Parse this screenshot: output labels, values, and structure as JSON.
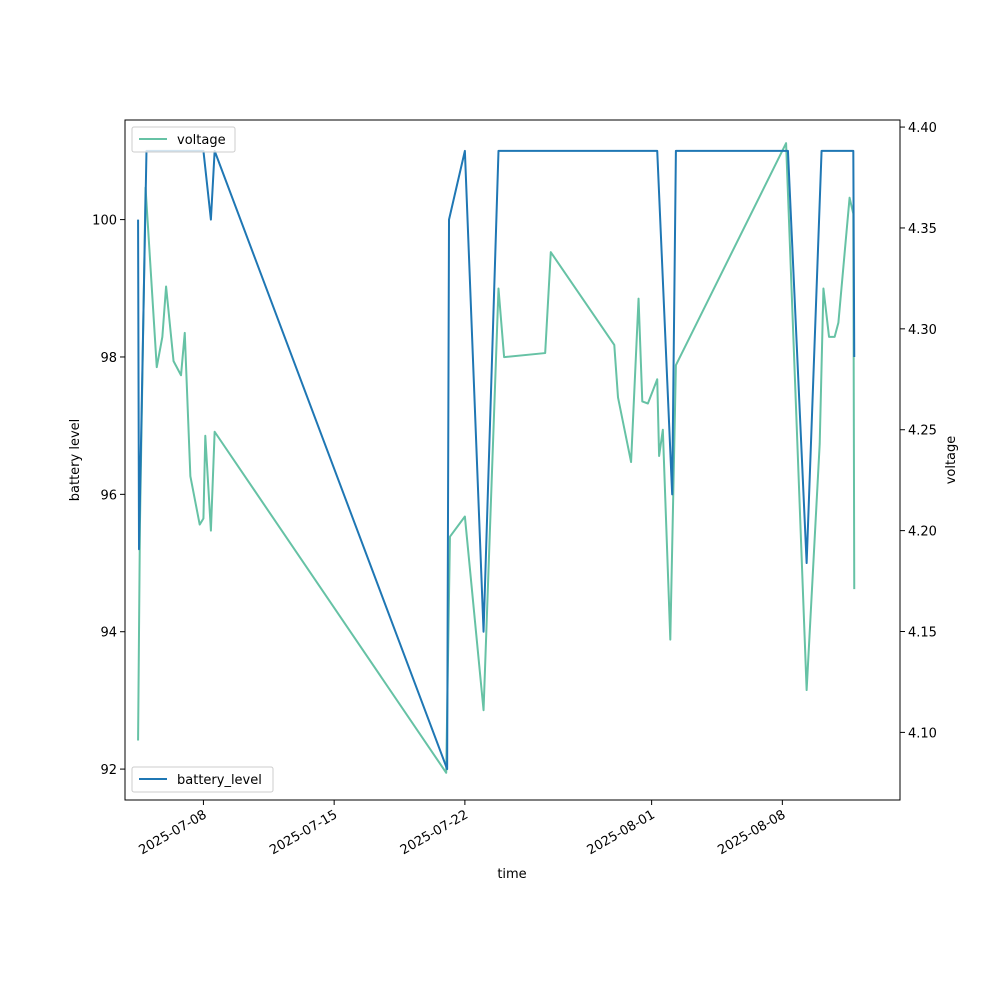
{
  "chart_data": {
    "type": "line",
    "title": "",
    "xlabel": "time",
    "ylabel_left": "battery level",
    "ylabel_right": "voltage",
    "x_ticks": [
      "2025-07-08",
      "2025-07-15",
      "2025-07-22",
      "2025-08-01",
      "2025-08-08"
    ],
    "y_left_ticks": [
      92,
      94,
      96,
      98,
      100
    ],
    "y_right_ticks": [
      "4.10",
      "4.15",
      "4.20",
      "4.25",
      "4.30",
      "4.35",
      "4.40"
    ],
    "xlim": [
      "2025-07-03T19:12",
      "2025-08-14T07:12"
    ],
    "ylim_left": [
      91.55,
      101.45
    ],
    "ylim_right": [
      4.0665,
      4.4035
    ],
    "grid": false,
    "colors": {
      "battery_level": "#1f77b4",
      "voltage": "#66c2a5"
    },
    "legends": [
      {
        "entries": [
          "voltage"
        ],
        "placement": "upper left"
      },
      {
        "entries": [
          "battery_level"
        ],
        "placement": "lower left"
      }
    ],
    "series": [
      {
        "name": "battery_level",
        "axis": "left",
        "points": [
          [
            "2025-07-04T12:00",
            100
          ],
          [
            "2025-07-04T13:12",
            95.2
          ],
          [
            "2025-07-04T22:48",
            101
          ],
          [
            "2025-07-08T00:00",
            101
          ],
          [
            "2025-07-08T09:36",
            100
          ],
          [
            "2025-07-08T14:24",
            101
          ],
          [
            "2025-07-21T01:12",
            92
          ],
          [
            "2025-07-21T03:36",
            100
          ],
          [
            "2025-07-22T00:00",
            101
          ],
          [
            "2025-07-23T00:00",
            94
          ],
          [
            "2025-07-23T19:12",
            101
          ],
          [
            "2025-08-01T07:12",
            101
          ],
          [
            "2025-08-02T02:24",
            96
          ],
          [
            "2025-08-02T07:12",
            101
          ],
          [
            "2025-08-08T07:12",
            101
          ],
          [
            "2025-08-09T07:12",
            95
          ],
          [
            "2025-08-10T02:24",
            101
          ],
          [
            "2025-08-11T19:12",
            101
          ],
          [
            "2025-08-11T20:24",
            98
          ]
        ]
      },
      {
        "name": "voltage",
        "axis": "right",
        "points": [
          [
            "2025-07-04T12:00",
            4.096
          ],
          [
            "2025-07-04T14:24",
            4.203
          ],
          [
            "2025-07-04T21:36",
            4.37
          ],
          [
            "2025-07-05T12:00",
            4.281
          ],
          [
            "2025-07-05T19:12",
            4.296
          ],
          [
            "2025-07-06T00:00",
            4.321
          ],
          [
            "2025-07-06T09:36",
            4.284
          ],
          [
            "2025-07-06T19:12",
            4.277
          ],
          [
            "2025-07-07T00:00",
            4.298
          ],
          [
            "2025-07-07T07:12",
            4.227
          ],
          [
            "2025-07-07T19:12",
            4.203
          ],
          [
            "2025-07-08T00:00",
            4.206
          ],
          [
            "2025-07-08T02:24",
            4.247
          ],
          [
            "2025-07-08T09:36",
            4.2
          ],
          [
            "2025-07-08T14:24",
            4.249
          ],
          [
            "2025-07-21T00:00",
            4.08
          ],
          [
            "2025-07-21T04:48",
            4.197
          ],
          [
            "2025-07-22T00:00",
            4.207
          ],
          [
            "2025-07-23T00:00",
            4.111
          ],
          [
            "2025-07-23T19:12",
            4.32
          ],
          [
            "2025-07-24T02:24",
            4.286
          ],
          [
            "2025-07-26T07:12",
            4.288
          ],
          [
            "2025-07-26T14:24",
            4.338
          ],
          [
            "2025-07-30T00:00",
            4.292
          ],
          [
            "2025-07-30T04:48",
            4.266
          ],
          [
            "2025-07-30T21:36",
            4.234
          ],
          [
            "2025-07-31T07:12",
            4.315
          ],
          [
            "2025-07-31T12:00",
            4.264
          ],
          [
            "2025-07-31T19:12",
            4.263
          ],
          [
            "2025-08-01T07:12",
            4.275
          ],
          [
            "2025-08-01T09:36",
            4.237
          ],
          [
            "2025-08-01T14:24",
            4.25
          ],
          [
            "2025-08-02T00:00",
            4.146
          ],
          [
            "2025-08-02T07:12",
            4.282
          ],
          [
            "2025-08-08T04:48",
            4.392
          ],
          [
            "2025-08-09T07:12",
            4.121
          ],
          [
            "2025-08-10T00:00",
            4.243
          ],
          [
            "2025-08-10T04:48",
            4.32
          ],
          [
            "2025-08-10T12:00",
            4.296
          ],
          [
            "2025-08-10T19:12",
            4.296
          ],
          [
            "2025-08-11T00:00",
            4.303
          ],
          [
            "2025-08-11T14:24",
            4.365
          ],
          [
            "2025-08-11T19:12",
            4.357
          ],
          [
            "2025-08-11T20:24",
            4.171
          ]
        ]
      }
    ]
  }
}
